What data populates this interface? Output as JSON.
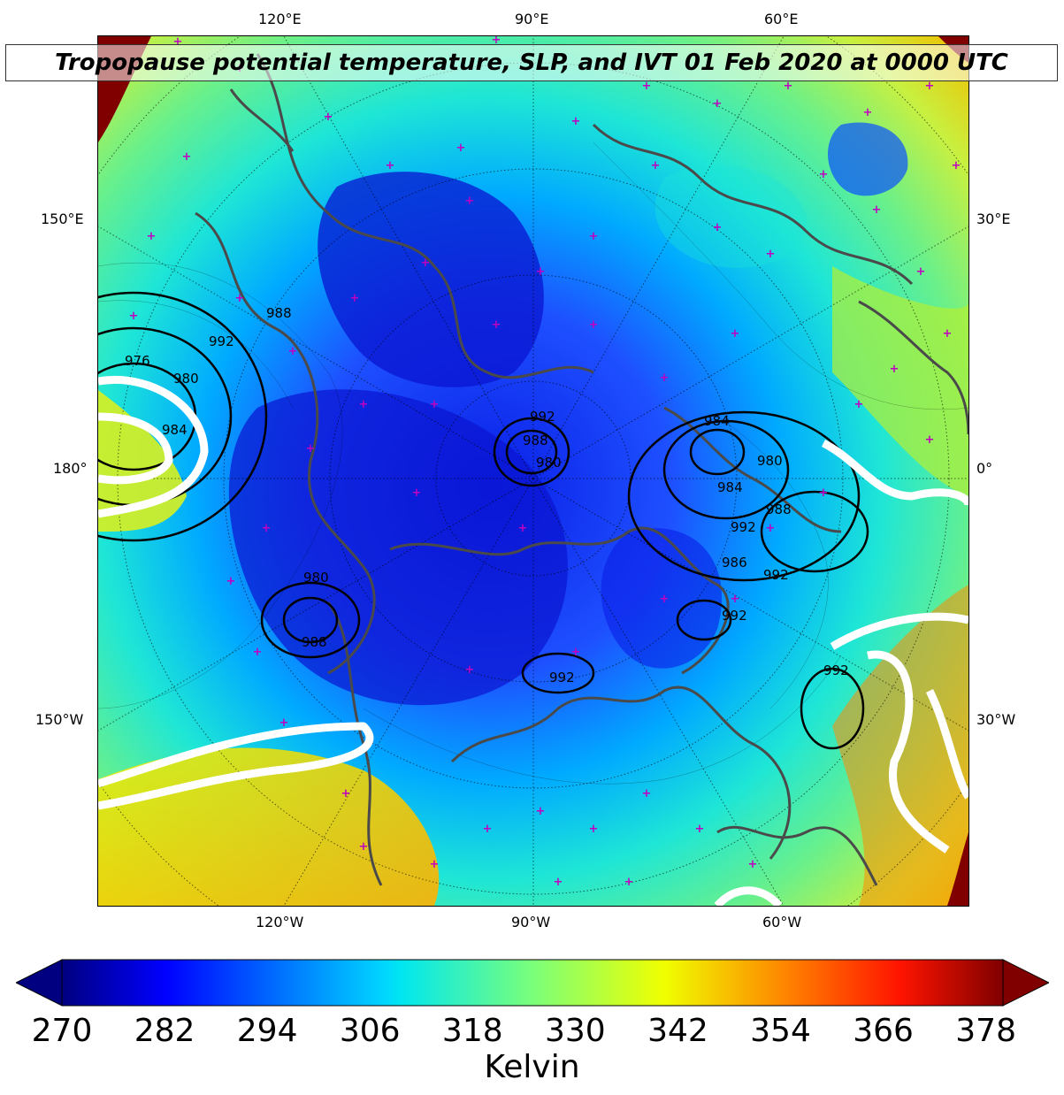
{
  "title": "Tropopause potential temperature, SLP, and IVT 01 Feb 2020 at 0000 UTC",
  "map": {
    "projection": "polar-stereographic",
    "lon_labels": {
      "top": [
        "120°E",
        "90°E",
        "60°E"
      ],
      "bottom": [
        "120°W",
        "90°W",
        "60°W"
      ],
      "left": [
        "150°E",
        "180°",
        "150°W"
      ],
      "right": [
        "30°E",
        "0°",
        "30°W"
      ]
    },
    "slp_contour_labels": [
      "988",
      "976",
      "992",
      "980",
      "984",
      "992",
      "988",
      "980",
      "984",
      "984",
      "980",
      "988",
      "992",
      "986",
      "992",
      "992",
      "988",
      "980",
      "992",
      "992"
    ],
    "colors": {
      "coastline": "#4a4a4a",
      "station_marker": "#c000c0",
      "slp_contour": "#000000",
      "ivt_contour": "#ffffff"
    }
  },
  "colorbar": {
    "ticks": [
      "270",
      "282",
      "294",
      "306",
      "318",
      "330",
      "342",
      "354",
      "366",
      "378"
    ],
    "label": "Kelvin",
    "colormap": "jet",
    "range": [
      270,
      380
    ]
  }
}
